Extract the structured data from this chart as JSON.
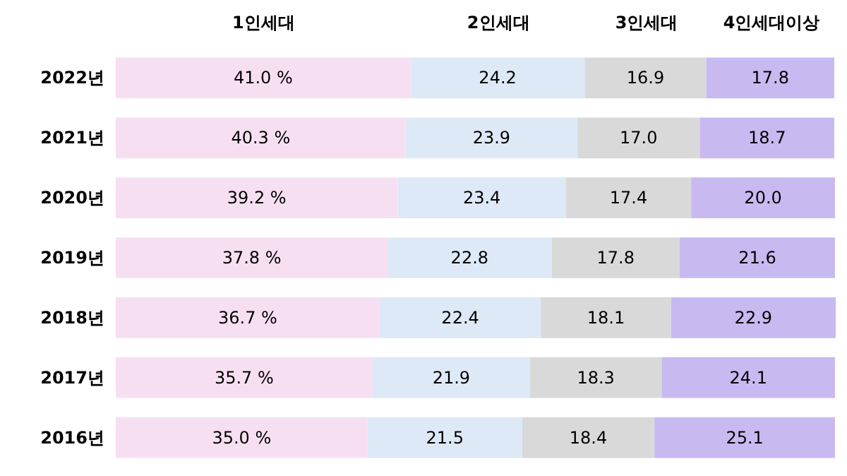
{
  "chart_data": {
    "type": "bar",
    "orientation": "horizontal",
    "stacked": true,
    "legend": "top",
    "categories": [
      "2022년",
      "2021년",
      "2020년",
      "2019년",
      "2018년",
      "2017년",
      "2016년"
    ],
    "series": [
      {
        "name": "1인세대",
        "color": "#f7dff2",
        "values": [
          41.0,
          40.3,
          39.2,
          37.8,
          36.7,
          35.7,
          35.0
        ],
        "value_labels": [
          "41.0 %",
          "40.3 %",
          "39.2 %",
          "37.8 %",
          "36.7 %",
          "35.7 %",
          "35.0 %"
        ]
      },
      {
        "name": "2인세대",
        "color": "#dde9f6",
        "values": [
          24.2,
          23.9,
          23.4,
          22.8,
          22.4,
          21.9,
          21.5
        ],
        "value_labels": [
          "24.2",
          "23.9",
          "23.4",
          "22.8",
          "22.4",
          "21.9",
          "21.5"
        ]
      },
      {
        "name": "3인세대",
        "color": "#d9d9d9",
        "values": [
          16.9,
          17.0,
          17.4,
          17.8,
          18.1,
          18.3,
          18.4
        ],
        "value_labels": [
          "16.9",
          "17.0",
          "17.4",
          "17.8",
          "18.1",
          "18.3",
          "18.4"
        ]
      },
      {
        "name": "4인세대이상",
        "color": "#c9b9f1",
        "values": [
          17.8,
          18.7,
          20.0,
          21.6,
          22.9,
          24.1,
          25.1
        ],
        "value_labels": [
          "17.8",
          "18.7",
          "20.0",
          "21.6",
          "22.9",
          "24.1",
          "25.1"
        ]
      }
    ]
  }
}
